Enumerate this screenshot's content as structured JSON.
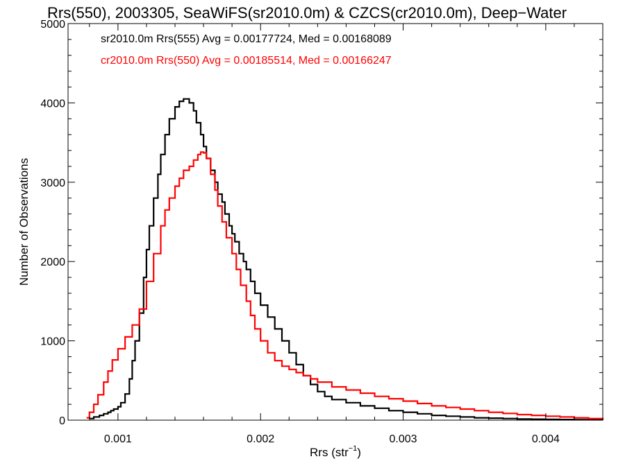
{
  "chart_data": {
    "type": "line",
    "title": "Rrs(550), 2003305, SeaWiFS(sr2010.0m) & CZCS(cr2010.0m), Deep−Water",
    "xlabel_main": "Rrs (str",
    "xlabel_sup": "−1",
    "xlabel_close": ")",
    "ylabel": "Number of Observations",
    "xlim": [
      0.00065,
      0.0044
    ],
    "ylim": [
      0,
      5000
    ],
    "x_ticks": [
      0.001,
      0.002,
      0.003,
      0.004
    ],
    "x_tick_labels": [
      "0.001",
      "0.002",
      "0.003",
      "0.004"
    ],
    "y_ticks": [
      0,
      1000,
      2000,
      3000,
      4000,
      5000
    ],
    "y_tick_labels": [
      "0",
      "1000",
      "2000",
      "3000",
      "4000",
      "5000"
    ],
    "grid": false,
    "legend_position": "top-left",
    "series": [
      {
        "name": "sr2010.0m Rrs(555) Avg = 0.00177724, Med = 0.00168089",
        "color": "#000000",
        "x": [
          0.0008,
          0.00083,
          0.00087,
          0.0009,
          0.00093,
          0.00095,
          0.00097,
          0.001,
          0.00102,
          0.00105,
          0.00108,
          0.0011,
          0.00112,
          0.00115,
          0.00118,
          0.0012,
          0.00122,
          0.00125,
          0.00128,
          0.0013,
          0.00133,
          0.00136,
          0.0014,
          0.00143,
          0.00146,
          0.0015,
          0.00153,
          0.00155,
          0.00158,
          0.0016,
          0.00162,
          0.00165,
          0.00168,
          0.0017,
          0.00173,
          0.00175,
          0.00178,
          0.0018,
          0.00182,
          0.00185,
          0.00188,
          0.0019,
          0.00193,
          0.00196,
          0.002,
          0.00205,
          0.0021,
          0.00215,
          0.0022,
          0.00225,
          0.0023,
          0.00235,
          0.0024,
          0.00245,
          0.0025,
          0.0026,
          0.0027,
          0.0028,
          0.0029,
          0.003,
          0.0031,
          0.0032,
          0.0033,
          0.0034,
          0.0035,
          0.0036,
          0.0037,
          0.0038,
          0.0039,
          0.004,
          0.0041,
          0.0042,
          0.0043,
          0.0044
        ],
        "y": [
          20,
          40,
          60,
          80,
          100,
          120,
          140,
          170,
          220,
          330,
          520,
          750,
          1000,
          1350,
          1800,
          2150,
          2450,
          2800,
          3100,
          3350,
          3600,
          3800,
          3950,
          4020,
          4050,
          4000,
          3900,
          3750,
          3600,
          3450,
          3300,
          3150,
          3000,
          2850,
          2750,
          2600,
          2450,
          2350,
          2250,
          2100,
          2000,
          1900,
          1750,
          1600,
          1450,
          1300,
          1150,
          1000,
          850,
          700,
          560,
          450,
          360,
          300,
          260,
          220,
          180,
          150,
          120,
          100,
          80,
          60,
          50,
          40,
          30,
          25,
          20,
          15,
          12,
          10,
          8,
          6,
          5,
          4
        ]
      },
      {
        "name": "cr2010.0m Rrs(550) Avg = 0.00185514, Med = 0.00166247",
        "color": "#ff0000",
        "x": [
          0.00078,
          0.0008,
          0.00083,
          0.00086,
          0.0009,
          0.00093,
          0.00096,
          0.001,
          0.00105,
          0.0011,
          0.00115,
          0.0012,
          0.00125,
          0.0013,
          0.00133,
          0.00136,
          0.0014,
          0.00143,
          0.00146,
          0.0015,
          0.00153,
          0.00156,
          0.00158,
          0.0016,
          0.00162,
          0.00165,
          0.00168,
          0.0017,
          0.00173,
          0.00176,
          0.0018,
          0.00183,
          0.00186,
          0.0019,
          0.00193,
          0.00196,
          0.002,
          0.00205,
          0.0021,
          0.00215,
          0.0022,
          0.00225,
          0.0023,
          0.00235,
          0.0024,
          0.0025,
          0.0026,
          0.0027,
          0.0028,
          0.0029,
          0.003,
          0.0031,
          0.0032,
          0.0033,
          0.0034,
          0.0035,
          0.0036,
          0.0037,
          0.0038,
          0.0039,
          0.004,
          0.0041,
          0.0042,
          0.0043,
          0.0044
        ],
        "y": [
          30,
          100,
          200,
          320,
          480,
          620,
          760,
          900,
          1050,
          1200,
          1400,
          1750,
          2100,
          2450,
          2650,
          2800,
          2950,
          3050,
          3150,
          3200,
          3280,
          3350,
          3380,
          3370,
          3300,
          3100,
          2900,
          2700,
          2500,
          2300,
          2100,
          1900,
          1700,
          1500,
          1320,
          1150,
          1000,
          850,
          750,
          680,
          640,
          600,
          560,
          520,
          480,
          420,
          380,
          340,
          300,
          270,
          240,
          210,
          180,
          160,
          140,
          120,
          100,
          85,
          70,
          60,
          50,
          40,
          30,
          20,
          15
        ]
      }
    ]
  }
}
